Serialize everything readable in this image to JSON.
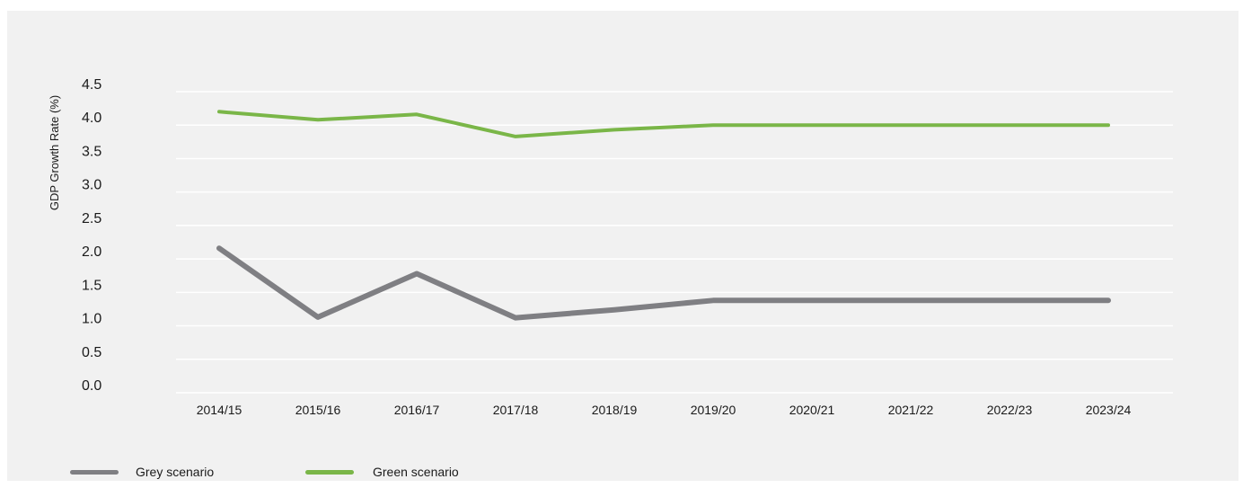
{
  "chart_data": {
    "type": "line",
    "title": "",
    "xlabel": "",
    "ylabel": "GDP Growth Rate (%)",
    "categories": [
      "2014/15",
      "2015/16",
      "2016/17",
      "2017/18",
      "2018/19",
      "2019/20",
      "2020/21",
      "2021/22",
      "2022/23",
      "2023/24"
    ],
    "y_ticks": [
      "0.0",
      "0.5",
      "1.0",
      "1.5",
      "2.0",
      "2.5",
      "3.0",
      "3.5",
      "4.0",
      "4.5"
    ],
    "ylim": [
      0,
      4.5
    ],
    "grid": true,
    "legend_position": "bottom-left",
    "series": [
      {
        "name": "Grey scenario",
        "color": "#7f7f83",
        "values": [
          2.16,
          1.13,
          1.78,
          1.12,
          1.24,
          1.38,
          1.38,
          1.38,
          1.38,
          1.38
        ]
      },
      {
        "name": "Green scenario",
        "color": "#7ab648",
        "values": [
          4.2,
          4.08,
          4.16,
          3.83,
          3.93,
          4.0,
          4.0,
          4.0,
          4.0,
          4.0
        ]
      }
    ]
  }
}
